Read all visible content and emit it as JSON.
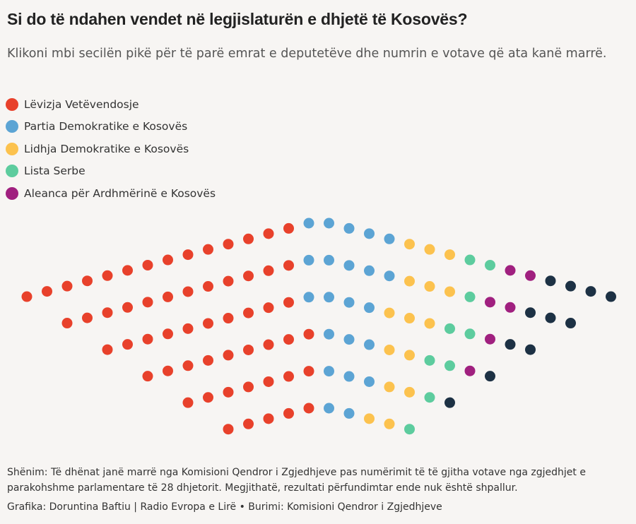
{
  "chart_data": {
    "type": "parliament",
    "title": "Si do të ndahen vendet në legjislaturën e dhjetë të Kosovës?",
    "subtitle": "Klikoni mbi secilën pikë për të parë emrat e deputetëve dhe numrin e votave që ata kanë marrë.",
    "series": [
      {
        "name": "Lëvizja Vetëvendosje",
        "color": "#e8412b",
        "values": 57
      },
      {
        "name": "Partia Demokratike e Kosovës",
        "color": "#5ca4d4",
        "values": 22
      },
      {
        "name": "Lidhja Demokratike e Kosovës",
        "color": "#fcc24e",
        "values": 15
      },
      {
        "name": "Lista Serbe",
        "color": "#5dcc9e",
        "values": 9
      },
      {
        "name": "Aleanca për Ardhmërinë e Kosovës",
        "color": "#a0207f",
        "values": 6
      },
      {
        "color": "#1d3144",
        "values": 11
      }
    ],
    "note": "Shënim: Të dhënat janë marrë nga Komisioni Qendror i Zgjedhjeve pas numërimit të të gjitha votave nga zgjedhjet e parakohshme parlamentare të 28 dhjetorit. Megjithatë, rezultati përfundimtar ende nuk është shpallur.",
    "credit": "Grafika: Doruntina Baftiu | Radio Evropa e Lirë • Burimi: Komisioni Qendror i Zgjedhjeve"
  }
}
